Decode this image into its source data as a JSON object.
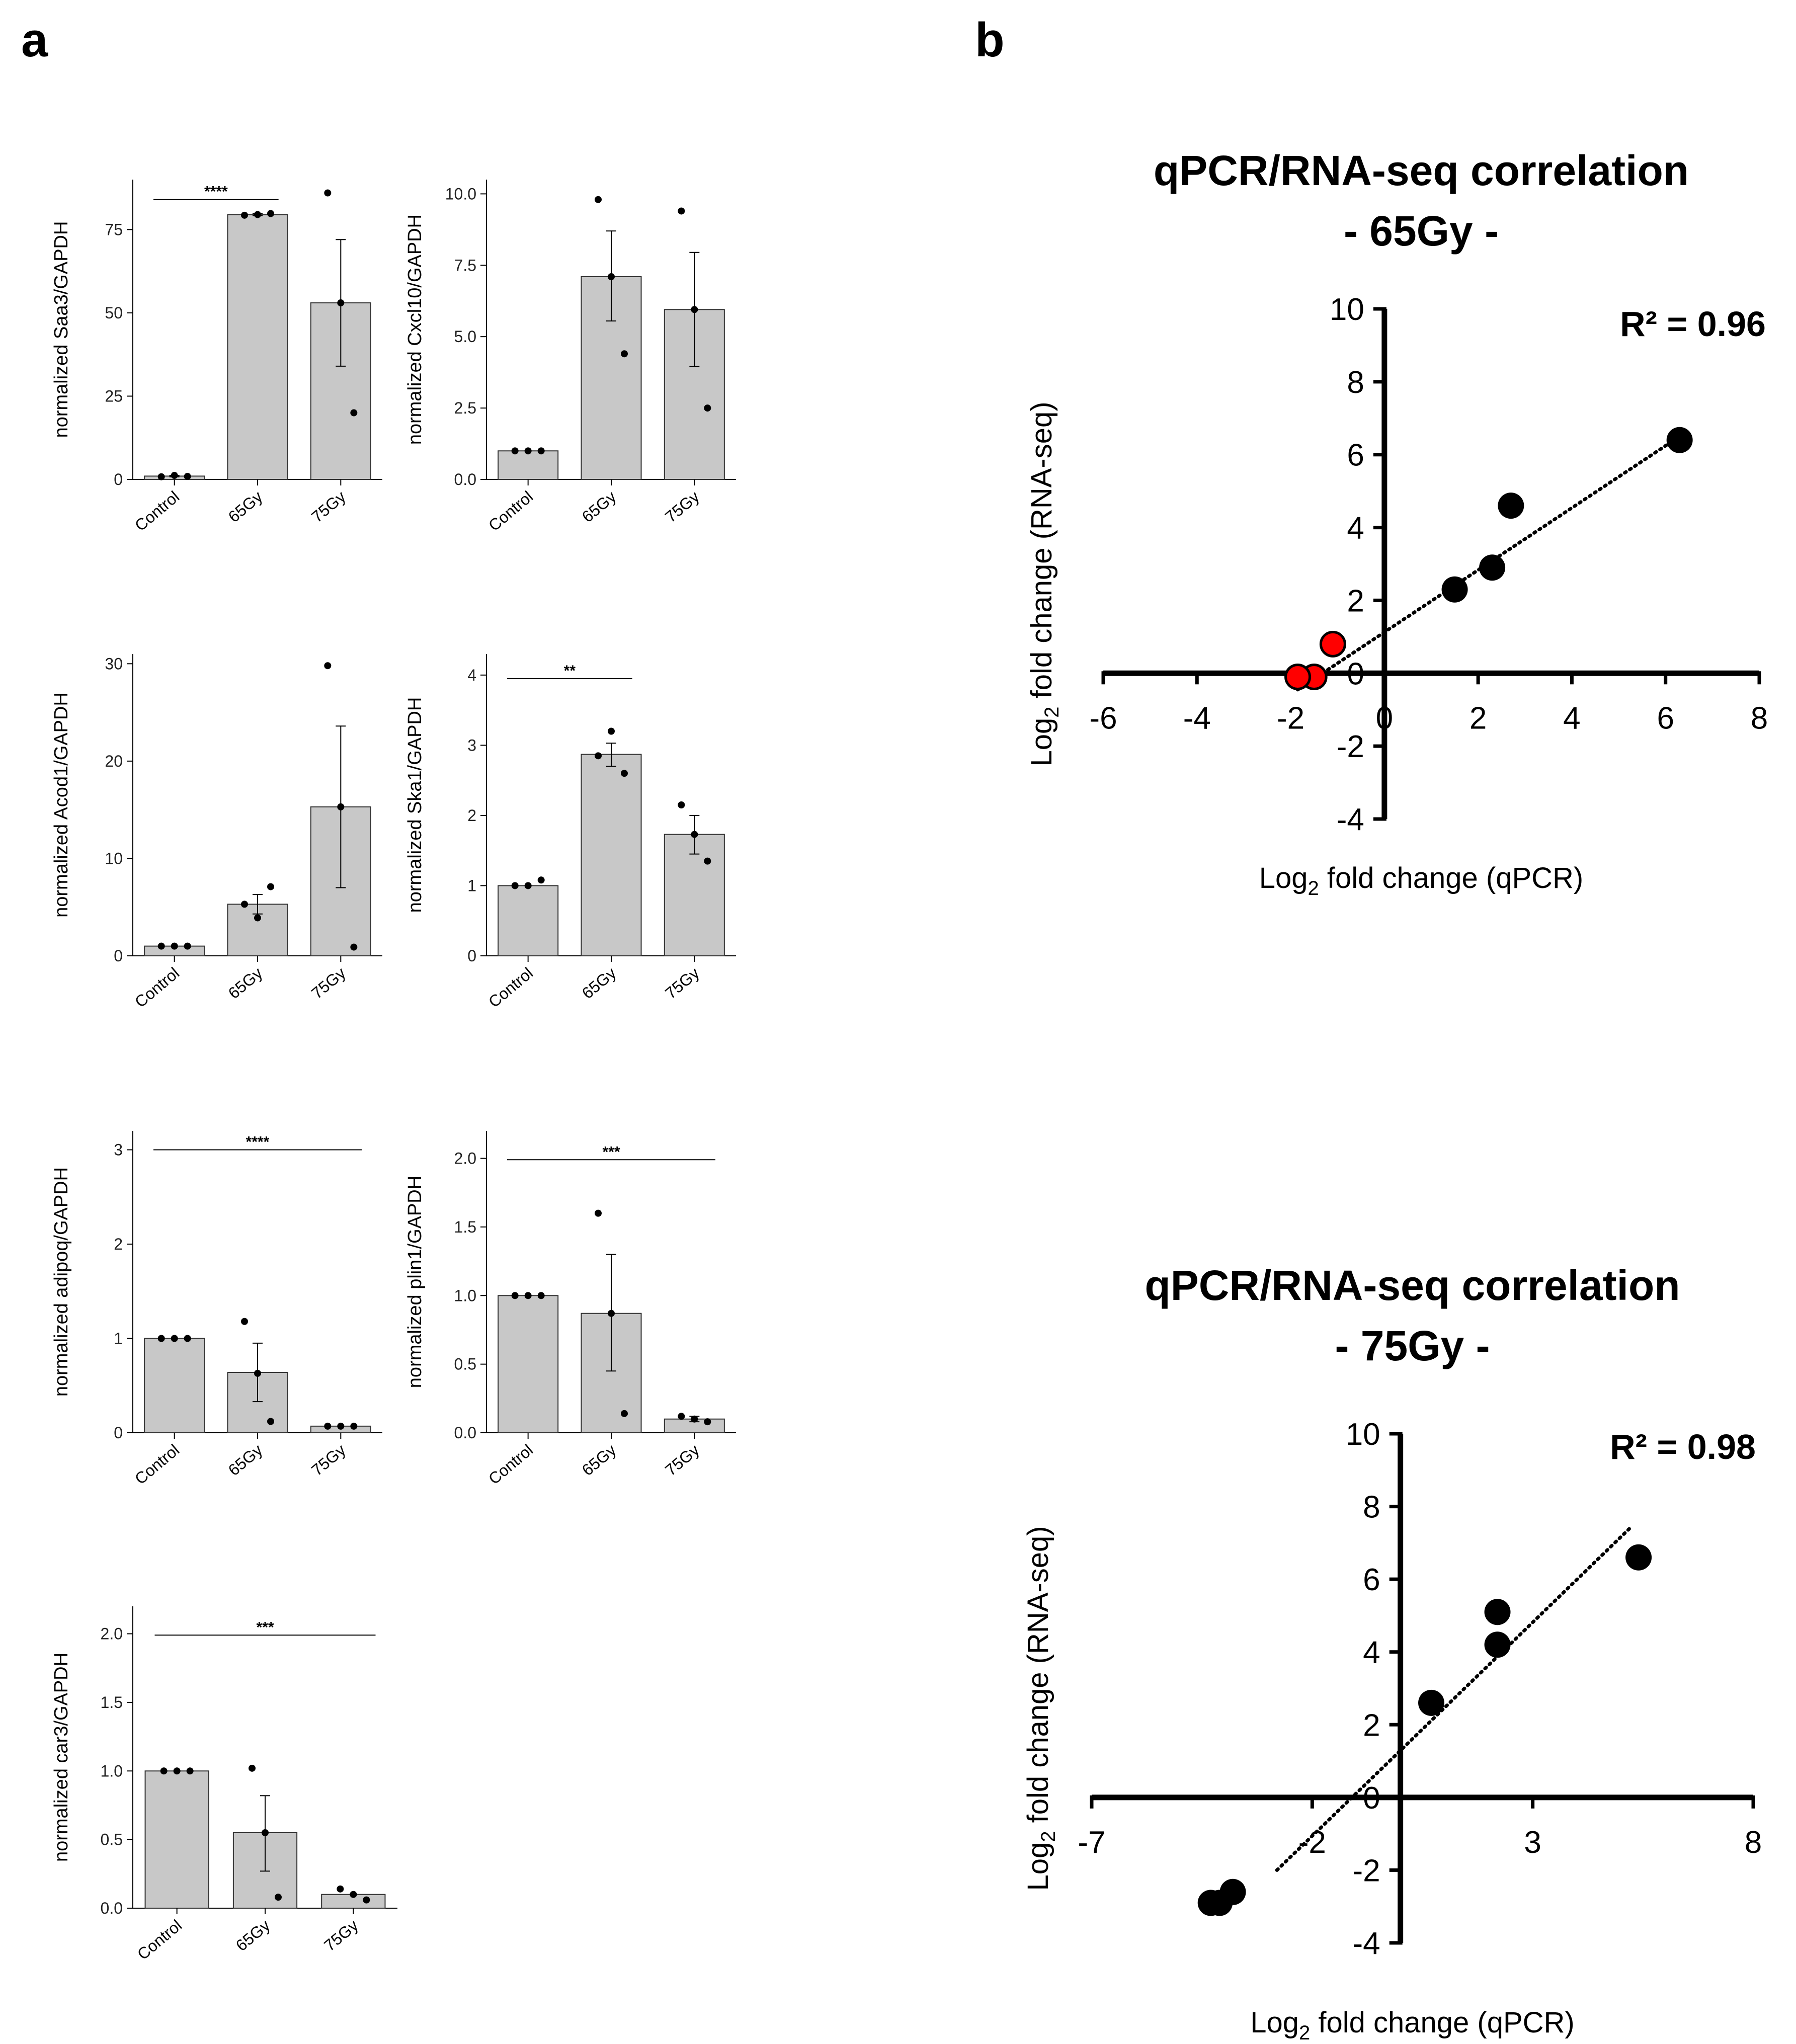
{
  "panels": {
    "a": "a",
    "b": "b"
  },
  "colors": {
    "bar_fill": "#c8c8c8",
    "bar_stroke": "#333333",
    "point": "#000000",
    "red_point": "#ff0000",
    "axis": "#000000"
  },
  "chart_data": [
    {
      "id": "saa3",
      "type": "bar",
      "ylabel": "normalized Saa3/GAPDH",
      "categories": [
        "Control",
        "65Gy",
        "75Gy"
      ],
      "values": [
        1,
        79.5,
        53
      ],
      "error_low": [
        0.8,
        79.2,
        34
      ],
      "error_high": [
        1.2,
        79.8,
        72
      ],
      "points": [
        [
          0.8,
          1.2,
          0.9
        ],
        [
          79.3,
          79.5,
          79.8
        ],
        [
          86,
          53,
          20
        ]
      ],
      "ylim": [
        0,
        90
      ],
      "yticks": [
        0,
        25,
        50,
        75
      ],
      "ytick_labels": [
        "0",
        "25",
        "50",
        "75"
      ],
      "significance": [
        {
          "from": 0,
          "to": 1,
          "y": 84,
          "label": "****"
        }
      ]
    },
    {
      "id": "cxcl10",
      "type": "bar",
      "ylabel": "normalized Cxcl10/GAPDH",
      "categories": [
        "Control",
        "65Gy",
        "75Gy"
      ],
      "values": [
        1,
        7.1,
        5.95
      ],
      "error_low": [
        1,
        5.55,
        3.95
      ],
      "error_high": [
        1,
        8.7,
        7.95
      ],
      "points": [
        [
          1,
          1,
          1
        ],
        [
          9.8,
          7.1,
          4.4
        ],
        [
          9.4,
          5.95,
          2.5
        ]
      ],
      "ylim": [
        0,
        10.5
      ],
      "yticks": [
        0,
        2.5,
        5,
        7.5,
        10
      ],
      "ytick_labels": [
        "0.0",
        "2.5",
        "5.0",
        "7.5",
        "10.0"
      ],
      "significance": []
    },
    {
      "id": "acod1",
      "type": "bar",
      "ylabel": "normalized Acod1/GAPDH",
      "categories": [
        "Control",
        "65Gy",
        "75Gy"
      ],
      "values": [
        1,
        5.3,
        15.3
      ],
      "error_low": [
        1,
        4.3,
        7
      ],
      "error_high": [
        1,
        6.3,
        23.6
      ],
      "points": [
        [
          1,
          1,
          1
        ],
        [
          5.3,
          3.9,
          7.1
        ],
        [
          29.8,
          15.3,
          0.9
        ]
      ],
      "ylim": [
        0,
        31
      ],
      "yticks": [
        0,
        10,
        20,
        30
      ],
      "ytick_labels": [
        "0",
        "10",
        "20",
        "30"
      ],
      "significance": []
    },
    {
      "id": "ska1",
      "type": "bar",
      "ylabel": "normalized Ska1/GAPDH",
      "categories": [
        "Control",
        "65Gy",
        "75Gy"
      ],
      "values": [
        1,
        2.87,
        1.73
      ],
      "error_low": [
        1,
        2.7,
        1.45
      ],
      "error_high": [
        1,
        3.03,
        2.0
      ],
      "points": [
        [
          1,
          1,
          1.08
        ],
        [
          2.85,
          3.2,
          2.6
        ],
        [
          2.15,
          1.73,
          1.35
        ]
      ],
      "ylim": [
        0,
        4.3
      ],
      "yticks": [
        0,
        1,
        2,
        3,
        4
      ],
      "ytick_labels": [
        "0",
        "1",
        "2",
        "3",
        "4"
      ],
      "significance": [
        {
          "from": 0,
          "to": 1,
          "y": 3.95,
          "label": "**"
        }
      ]
    },
    {
      "id": "adipoq",
      "type": "bar",
      "ylabel": "normalized adipoq/GAPDH",
      "categories": [
        "Control",
        "65Gy",
        "75Gy"
      ],
      "values": [
        1,
        0.64,
        0.07
      ],
      "error_low": [
        1,
        0.33,
        0.07
      ],
      "error_high": [
        1,
        0.95,
        0.07
      ],
      "points": [
        [
          1,
          1,
          1
        ],
        [
          1.18,
          0.63,
          0.12
        ],
        [
          0.07,
          0.07,
          0.07
        ]
      ],
      "ylim": [
        0,
        3.2
      ],
      "yticks": [
        0,
        1,
        2,
        3
      ],
      "ytick_labels": [
        "0",
        "1",
        "2",
        "3"
      ],
      "significance": [
        {
          "from": 0,
          "to": 2,
          "y": 3.0,
          "label": "****"
        }
      ]
    },
    {
      "id": "plin1",
      "type": "bar",
      "ylabel": "normalized plin1/GAPDH",
      "categories": [
        "Control",
        "65Gy",
        "75Gy"
      ],
      "values": [
        1,
        0.87,
        0.1
      ],
      "error_low": [
        1,
        0.45,
        0.08
      ],
      "error_high": [
        1,
        1.3,
        0.12
      ],
      "points": [
        [
          1,
          1,
          1
        ],
        [
          1.6,
          0.87,
          0.14
        ],
        [
          0.12,
          0.1,
          0.08
        ]
      ],
      "ylim": [
        0,
        2.2
      ],
      "yticks": [
        0,
        0.5,
        1,
        1.5,
        2
      ],
      "ytick_labels": [
        "0.0",
        "0.5",
        "1.0",
        "1.5",
        "2.0"
      ],
      "significance": [
        {
          "from": 0,
          "to": 2,
          "y": 1.99,
          "label": "***"
        }
      ]
    },
    {
      "id": "car3",
      "type": "bar",
      "ylabel": "normalized car3/GAPDH",
      "categories": [
        "Control",
        "65Gy",
        "75Gy"
      ],
      "values": [
        1,
        0.55,
        0.1
      ],
      "error_low": [
        1,
        0.27,
        0.1
      ],
      "error_high": [
        1,
        0.82,
        0.1
      ],
      "points": [
        [
          1,
          1,
          1
        ],
        [
          1.02,
          0.55,
          0.08
        ],
        [
          0.14,
          0.1,
          0.06
        ]
      ],
      "ylim": [
        0,
        2.2
      ],
      "yticks": [
        0,
        0.5,
        1,
        1.5,
        2
      ],
      "ytick_labels": [
        "0.0",
        "0.5",
        "1.0",
        "1.5",
        "2.0"
      ],
      "significance": [
        {
          "from": 0,
          "to": 2,
          "y": 1.99,
          "label": "***"
        }
      ]
    },
    {
      "id": "corr65",
      "type": "scatter",
      "title_line1": "qPCR/RNA-seq correlation",
      "title_line2": "- 65Gy -",
      "xlabel_main": "Log",
      "xlabel_sub": "2",
      "xlabel_rest": " fold change  (qPCR)",
      "ylabel_main": "Log",
      "ylabel_sub": "2",
      "ylabel_rest": " fold change  (RNA-seq)",
      "r2_label": "R² = 0.96",
      "xlim": [
        -6,
        8
      ],
      "ylim": [
        -4,
        10
      ],
      "xticks": [
        -6,
        -4,
        -2,
        0,
        2,
        4,
        6,
        8
      ],
      "xtick_labels": [
        "-6",
        "-4",
        "-2",
        "0",
        "2",
        "4",
        "6",
        "8"
      ],
      "yticks": [
        -4,
        -2,
        0,
        2,
        4,
        6,
        8,
        10
      ],
      "ytick_labels": [
        "-4",
        "-2",
        "0",
        "2",
        "4",
        "6",
        "8",
        "10"
      ],
      "points_black": [
        [
          6.3,
          6.4
        ],
        [
          2.7,
          4.6
        ],
        [
          2.3,
          2.9
        ],
        [
          1.5,
          2.3
        ]
      ],
      "points_red": [
        [
          -1.1,
          0.8
        ],
        [
          -1.5,
          -0.1
        ],
        [
          -1.85,
          -0.1
        ]
      ],
      "trendline": [
        [
          -1.85,
          -0.45
        ],
        [
          6.3,
          6.5
        ]
      ]
    },
    {
      "id": "corr75",
      "type": "scatter",
      "title_line1": "qPCR/RNA-seq correlation",
      "title_line2": "- 75Gy -",
      "xlabel_main": "Log",
      "xlabel_sub": "2",
      "xlabel_rest": " fold change  (qPCR)",
      "ylabel_main": "Log",
      "ylabel_sub": "2",
      "ylabel_rest": " fold change (RNA-seq)",
      "r2_label": "R² = 0.98",
      "xlim": [
        -7,
        8
      ],
      "ylim": [
        -4,
        10
      ],
      "xticks": [
        -7,
        -2,
        3,
        8
      ],
      "xtick_labels": [
        "-7",
        "-2",
        "3",
        "8"
      ],
      "yticks": [
        -4,
        -2,
        0,
        2,
        4,
        6,
        8,
        10
      ],
      "ytick_labels": [
        "-4",
        "-2",
        "0",
        "2",
        "4",
        "6",
        "8",
        "10"
      ],
      "points_black": [
        [
          5.4,
          6.6
        ],
        [
          2.2,
          5.1
        ],
        [
          2.2,
          4.2
        ],
        [
          0.7,
          2.6
        ],
        [
          -3.8,
          -2.6
        ],
        [
          -4.1,
          -2.9
        ],
        [
          -4.3,
          -2.9
        ]
      ],
      "points_red": [],
      "trendline": [
        [
          -2.8,
          -2.0
        ],
        [
          5.2,
          7.4
        ]
      ]
    }
  ]
}
